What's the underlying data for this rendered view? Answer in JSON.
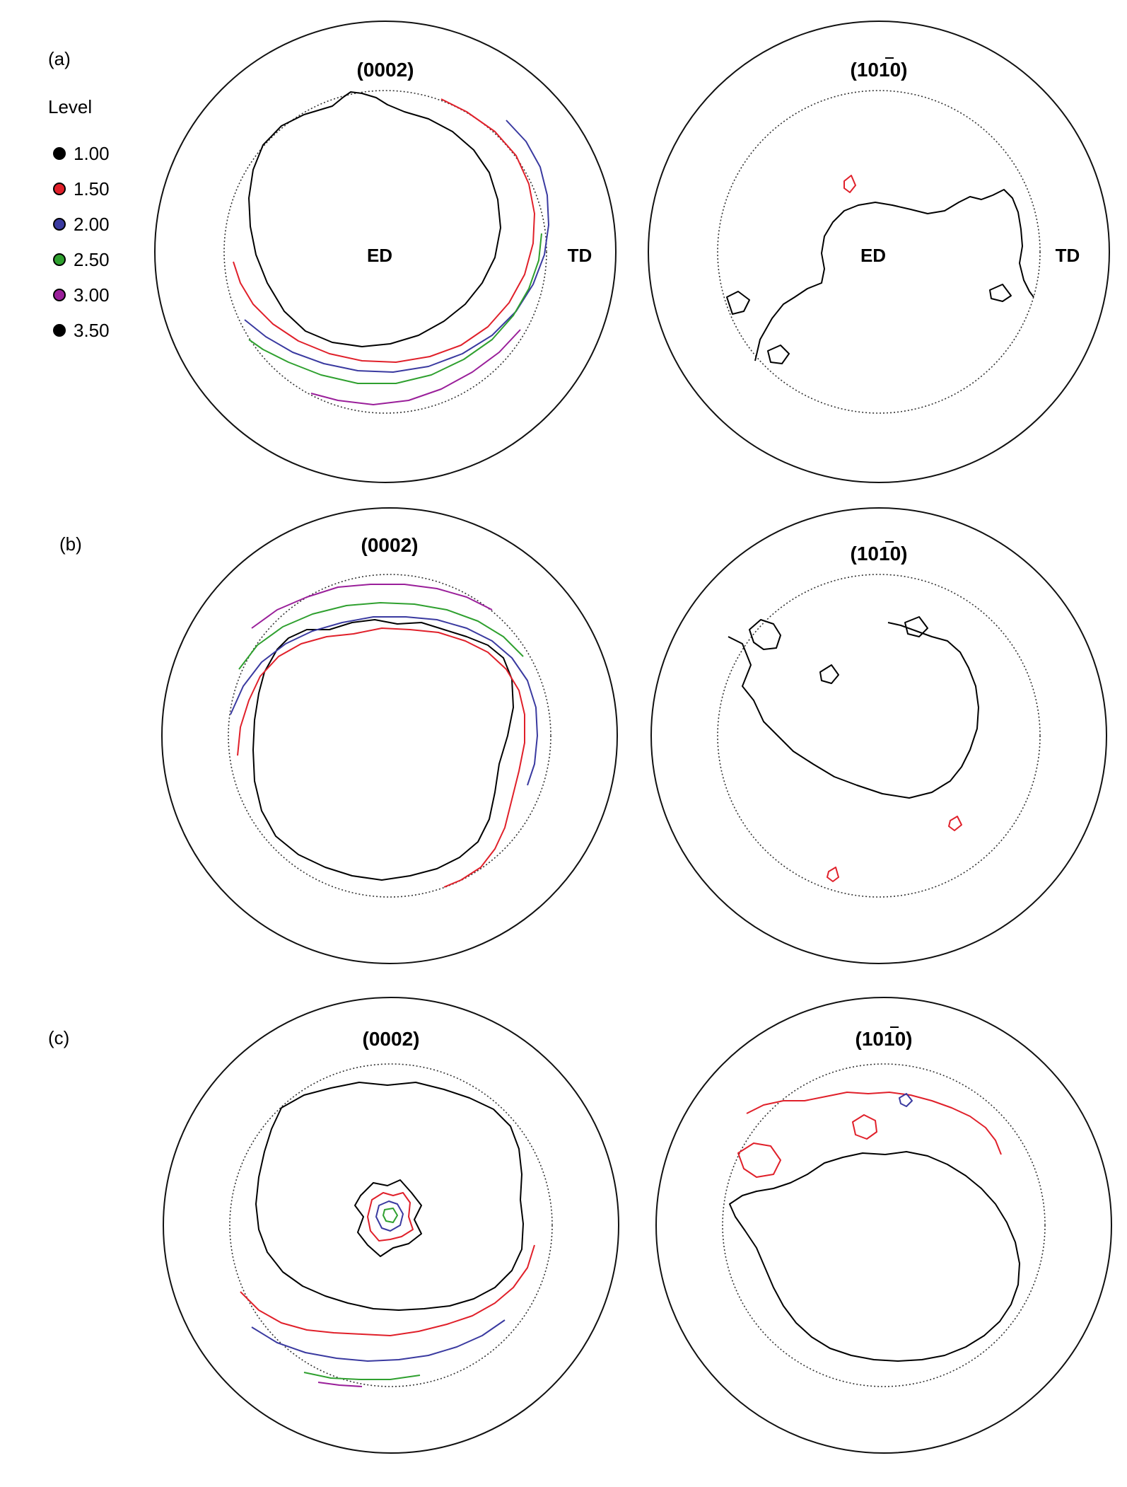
{
  "legend": {
    "title": "Level",
    "levels": [
      {
        "value": "1.00",
        "color": "#000000"
      },
      {
        "value": "1.50",
        "color": "#e0202a"
      },
      {
        "value": "2.00",
        "color": "#3a3aa0"
      },
      {
        "value": "2.50",
        "color": "#2fa02f"
      },
      {
        "value": "3.00",
        "color": "#9a1f9a"
      },
      {
        "value": "3.50",
        "color": "#000000"
      }
    ]
  },
  "panels": [
    {
      "label": "(a)",
      "figures": [
        {
          "title": "(0002)",
          "center_label": "ED",
          "side_label": "TD"
        },
        {
          "title": "(1010)",
          "center_label": "ED",
          "side_label": "TD",
          "bar_over": "1"
        }
      ]
    },
    {
      "label": "(b)",
      "figures": [
        {
          "title": "(0002)"
        },
        {
          "title": "(1010)",
          "bar_over": "1"
        }
      ]
    },
    {
      "label": "(c)",
      "figures": [
        {
          "title": "(0002)"
        },
        {
          "title": "(1010)",
          "bar_over": "1"
        }
      ]
    }
  ]
}
